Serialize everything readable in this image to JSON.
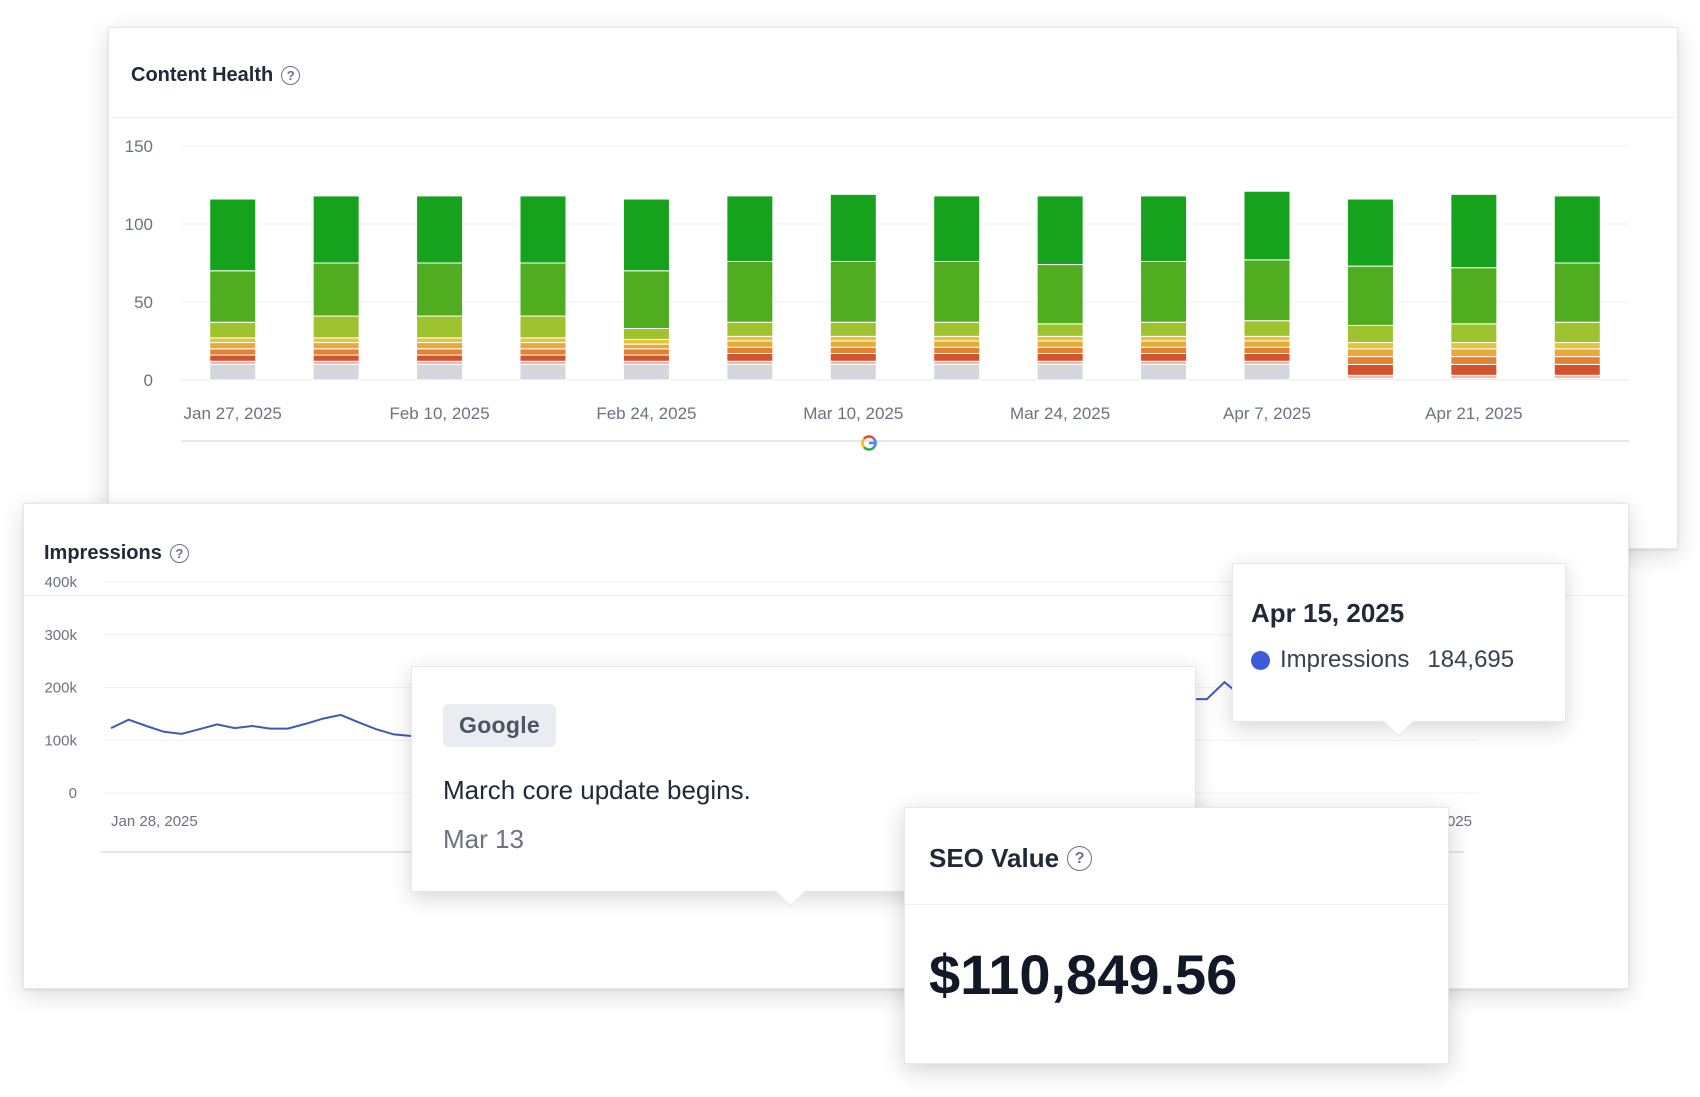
{
  "content_health": {
    "title": "Content Health",
    "help_icon": "question-circle-icon",
    "source_icon": "google-g-icon"
  },
  "impressions": {
    "title": "Impressions",
    "help_icon": "question-circle-icon",
    "source_icon": "google-g-icon",
    "tooltip": {
      "date": "Apr 15, 2025",
      "series_label": "Impressions",
      "value": "184,695",
      "dot_color": "#3b5bdb"
    }
  },
  "annotation": {
    "tag": "Google",
    "text": "March core update begins.",
    "date": "Mar 13"
  },
  "seo_value": {
    "title": "SEO Value",
    "help_icon": "question-circle-icon",
    "value": "$110,849.56"
  },
  "chart_data": [
    {
      "type": "bar",
      "stacked": true,
      "yticks": [
        "0",
        "50",
        "100",
        "150"
      ],
      "ylim": [
        0,
        150
      ],
      "xtick_labels": [
        "Jan 27, 2025",
        "Feb 10, 2025",
        "Feb 24, 2025",
        "Mar 10, 2025",
        "Mar 24, 2025",
        "Apr 7, 2025",
        "Apr 21, 2025"
      ],
      "xtick_positions": [
        0,
        2,
        4,
        6,
        8,
        10,
        12
      ],
      "grid": true,
      "series": [
        {
          "color": "#d5d6de",
          "values": [
            10,
            10,
            10,
            10,
            10,
            10,
            10,
            10,
            10,
            10,
            10,
            1,
            1,
            1
          ]
        },
        {
          "color": "#f2b6ad",
          "values": [
            2,
            2,
            2,
            2,
            2,
            2,
            2,
            2,
            2,
            2,
            2,
            2,
            2,
            2
          ]
        },
        {
          "color": "#d4522f",
          "values": [
            4,
            4,
            4,
            4,
            4,
            5,
            5,
            5,
            5,
            5,
            5,
            7,
            7,
            7
          ]
        },
        {
          "color": "#e38232",
          "values": [
            4,
            4,
            4,
            4,
            4,
            4,
            4,
            4,
            4,
            4,
            4,
            5,
            5,
            5
          ]
        },
        {
          "color": "#e9a93a",
          "values": [
            4,
            4,
            4,
            4,
            3,
            4,
            4,
            4,
            4,
            4,
            4,
            5,
            5,
            5
          ]
        },
        {
          "color": "#e1c63a",
          "values": [
            3,
            3,
            3,
            3,
            3,
            3,
            3,
            3,
            3,
            3,
            3,
            4,
            4,
            4
          ]
        },
        {
          "color": "#9ec32e",
          "values": [
            10,
            14,
            14,
            14,
            7,
            9,
            9,
            9,
            8,
            9,
            10,
            11,
            12,
            13
          ]
        },
        {
          "color": "#4fad1f",
          "values": [
            33,
            34,
            34,
            34,
            37,
            39,
            39,
            39,
            38,
            39,
            39,
            38,
            36,
            38
          ]
        },
        {
          "color": "#16a21c",
          "values": [
            46,
            43,
            43,
            43,
            46,
            42,
            43,
            42,
            44,
            42,
            44,
            43,
            47,
            43
          ]
        }
      ]
    },
    {
      "type": "line",
      "yticks": [
        "0",
        "100k",
        "200k",
        "300k",
        "400k"
      ],
      "ylim": [
        0,
        400000
      ],
      "xtick_labels": [
        "Jan 28, 2025",
        "Apr 22, 2025"
      ],
      "series": [
        {
          "name": "Impressions",
          "color": "#3b5bb5",
          "values": [
            123000,
            139000,
            127000,
            116000,
            112000,
            121000,
            130000,
            123000,
            127000,
            122000,
            122000,
            131000,
            141000,
            148000,
            134000,
            121000,
            111000,
            108000,
            null,
            null,
            null,
            null,
            null,
            null,
            null,
            null,
            null,
            null,
            null,
            null,
            null,
            null,
            null,
            null,
            null,
            null,
            null,
            null,
            null,
            null,
            null,
            null,
            null,
            null,
            null,
            null,
            null,
            null,
            null,
            null,
            null,
            null,
            null,
            null,
            null,
            190000,
            198000,
            199000,
            195000,
            195000,
            188000,
            178000,
            178000,
            210000,
            183000,
            186000,
            172000,
            193000,
            164000,
            174000,
            185000,
            160000,
            161000,
            153000,
            162000,
            154000,
            170000,
            284000
          ]
        }
      ]
    }
  ]
}
